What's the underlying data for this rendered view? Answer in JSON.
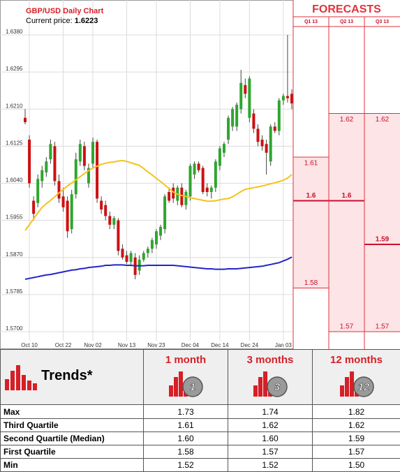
{
  "chart_data": {
    "type": "candlestick",
    "title": "GBP/USD Daily Chart",
    "price_label": "Current price:",
    "price": 1.6223,
    "categories": [
      null,
      "Oct 10",
      null,
      null,
      null,
      null,
      null,
      null,
      null,
      "Oct 22",
      null,
      null,
      null,
      null,
      null,
      null,
      "Nov 02",
      null,
      null,
      null,
      null,
      null,
      null,
      null,
      "Nov 13",
      null,
      null,
      null,
      null,
      null,
      null,
      "Nov 23",
      null,
      null,
      null,
      null,
      null,
      null,
      null,
      "Dec 04",
      null,
      null,
      null,
      null,
      null,
      null,
      "Dec 14",
      null,
      null,
      null,
      null,
      null,
      null,
      "Dec 24",
      null,
      null,
      null,
      null,
      null,
      null,
      null,
      "Jan 03",
      null,
      null
    ],
    "open": [
      1.619,
      1.614,
      1.6,
      1.5995,
      1.6045,
      1.6065,
      1.6095,
      1.6125,
      1.6045,
      1.601,
      1.6,
      1.5935,
      1.6015,
      1.609,
      1.6125,
      1.604,
      1.6085,
      1.6135,
      1.6,
      1.599,
      1.5965,
      1.5945,
      1.5955,
      1.589,
      1.5875,
      1.586,
      1.587,
      1.584,
      1.5865,
      1.588,
      1.589,
      1.59,
      1.592,
      1.5935,
      1.602,
      1.603,
      1.6,
      1.603,
      1.599,
      1.601,
      1.606,
      1.6085,
      1.6075,
      1.603,
      1.602,
      1.603,
      1.608,
      1.611,
      1.614,
      1.617,
      1.617,
      1.621,
      1.6265,
      1.619,
      1.62,
      1.6165,
      1.614,
      1.613,
      1.609,
      1.617,
      1.616,
      1.623,
      1.624,
      1.6245
    ],
    "high": [
      1.621,
      1.615,
      1.601,
      1.606,
      1.608,
      1.61,
      1.614,
      1.6135,
      1.606,
      1.603,
      1.601,
      1.6025,
      1.611,
      1.614,
      1.6135,
      1.6085,
      1.6145,
      1.614,
      1.601,
      1.6,
      1.5975,
      1.5965,
      1.596,
      1.59,
      1.5885,
      1.5885,
      1.588,
      1.5875,
      1.5885,
      1.5895,
      1.5915,
      1.5935,
      1.5945,
      1.6015,
      1.603,
      1.604,
      1.6035,
      1.604,
      1.6025,
      1.6085,
      1.609,
      1.609,
      1.608,
      1.604,
      1.6035,
      1.6095,
      1.6125,
      1.6135,
      1.6195,
      1.6215,
      1.6225,
      1.63,
      1.628,
      1.6285,
      1.621,
      1.6175,
      1.615,
      1.614,
      1.6175,
      1.618,
      1.6235,
      1.6245,
      1.638,
      1.6255
    ],
    "low": [
      1.6175,
      1.603,
      1.5955,
      1.5985,
      1.603,
      1.6055,
      1.6085,
      1.6035,
      1.5995,
      1.5975,
      1.5915,
      1.5925,
      1.6005,
      1.608,
      1.607,
      1.603,
      1.6075,
      1.5995,
      1.597,
      1.5955,
      1.5935,
      1.5935,
      1.5875,
      1.5865,
      1.5855,
      1.585,
      1.582,
      1.583,
      1.586,
      1.587,
      1.588,
      1.589,
      1.591,
      1.5925,
      1.5995,
      1.5995,
      1.599,
      1.5985,
      1.598,
      1.6,
      1.605,
      1.6065,
      1.6015,
      1.601,
      1.6005,
      1.602,
      1.607,
      1.61,
      1.613,
      1.616,
      1.616,
      1.62,
      1.6235,
      1.618,
      1.6155,
      1.6125,
      1.6115,
      1.606,
      1.608,
      1.6155,
      1.615,
      1.622,
      1.6225,
      1.621
    ],
    "close": [
      1.618,
      1.604,
      1.597,
      1.605,
      1.607,
      1.609,
      1.613,
      1.6045,
      1.6005,
      1.5985,
      1.593,
      1.6015,
      1.6095,
      1.613,
      1.608,
      1.6075,
      1.6135,
      1.6005,
      1.598,
      1.5965,
      1.5945,
      1.596,
      1.5885,
      1.587,
      1.586,
      1.588,
      1.583,
      1.5865,
      1.588,
      1.589,
      1.591,
      1.593,
      1.594,
      1.601,
      1.6,
      1.6005,
      1.603,
      1.599,
      1.602,
      1.608,
      1.6085,
      1.607,
      1.602,
      1.602,
      1.603,
      1.609,
      1.612,
      1.613,
      1.619,
      1.621,
      1.622,
      1.627,
      1.6245,
      1.628,
      1.6165,
      1.6135,
      1.6125,
      1.611,
      1.617,
      1.616,
      1.623,
      1.624,
      1.6235,
      1.6223
    ],
    "up_color": "#2fa52f",
    "down_color": "#cc1111",
    "lines": [
      {
        "color": "#f6c21a",
        "values": [
          1.5932,
          1.5945,
          1.5958,
          1.5972,
          1.5985,
          1.5993,
          1.6001,
          1.6009,
          1.6018,
          1.6026,
          1.6034,
          1.6041,
          1.6048,
          1.6055,
          1.6062,
          1.6069,
          1.6075,
          1.6079,
          1.6083,
          1.6086,
          1.6088,
          1.6089,
          1.6091,
          1.6092,
          1.609,
          1.6087,
          1.6084,
          1.6081,
          1.6074,
          1.6066,
          1.6059,
          1.6051,
          1.6044,
          1.6036,
          1.6028,
          1.602,
          1.6015,
          1.6012,
          1.601,
          1.6007,
          1.6005,
          1.6003,
          1.6001,
          1.5999,
          1.5999,
          1.6,
          1.6002,
          1.6004,
          1.6005,
          1.6009,
          1.6015,
          1.6021,
          1.6026,
          1.6028,
          1.603,
          1.6032,
          1.6034,
          1.6036,
          1.6039,
          1.6041,
          1.6044,
          1.6047,
          1.6052,
          1.606
        ]
      },
      {
        "color": "#2424c8",
        "values": [
          1.582,
          1.5822,
          1.5824,
          1.5826,
          1.5828,
          1.583,
          1.5831,
          1.5833,
          1.5835,
          1.5837,
          1.5839,
          1.5841,
          1.5842,
          1.5844,
          1.5845,
          1.5847,
          1.5848,
          1.5849,
          1.585,
          1.5852,
          1.5852,
          1.5853,
          1.5853,
          1.5853,
          1.5852,
          1.5852,
          1.5851,
          1.5851,
          1.5851,
          1.5852,
          1.5852,
          1.5852,
          1.5852,
          1.5852,
          1.5852,
          1.5852,
          1.5851,
          1.585,
          1.5849,
          1.5848,
          1.5847,
          1.5846,
          1.5845,
          1.5844,
          1.5844,
          1.5843,
          1.5843,
          1.5843,
          1.5844,
          1.5844,
          1.5844,
          1.5845,
          1.5846,
          1.5847,
          1.5848,
          1.5849,
          1.585,
          1.5852,
          1.5854,
          1.5856,
          1.5858,
          1.5862,
          1.5866,
          1.5871
        ]
      }
    ],
    "ylim": [
      1.566,
      1.646
    ],
    "yticks": [
      {
        "value": 1.57,
        "label": "1.5700"
      },
      1.5785,
      {
        "value": 1.587,
        "label": "1.5870"
      },
      1.5955,
      {
        "value": 1.604,
        "label": "1.6040"
      },
      1.6125,
      {
        "value": 1.621,
        "label": "1.6210"
      },
      1.6295,
      {
        "value": 1.638,
        "label": "1.6380"
      }
    ],
    "grid": true
  },
  "forecast": {
    "title": "FORECASTS",
    "color": "#e0323a",
    "shade": "#fde4e6",
    "columns": [
      {
        "label": "Q1 13",
        "high": 1.61,
        "median": 1.6,
        "low": 1.58
      },
      {
        "label": "Q2 13",
        "high": 1.62,
        "median": 1.6,
        "low": 1.57
      },
      {
        "label": "Q3 13",
        "high": 1.62,
        "median": 1.59,
        "low": 1.57
      }
    ]
  },
  "table": {
    "header": [
      "Trends*",
      "1 month",
      "3 months",
      "12 months"
    ],
    "icons": [
      "1",
      "3",
      "12"
    ],
    "rows": [
      [
        "Max",
        "1.73",
        "1.74",
        "1.82"
      ],
      [
        "Third Quartile",
        "1.61",
        "1.62",
        "1.62"
      ],
      [
        "Second Quartile (Median)",
        "1.60",
        "1.60",
        "1.59"
      ],
      [
        "First Quartile",
        "1.58",
        "1.57",
        "1.57"
      ],
      [
        "Min",
        "1.52",
        "1.52",
        "1.50"
      ]
    ]
  }
}
